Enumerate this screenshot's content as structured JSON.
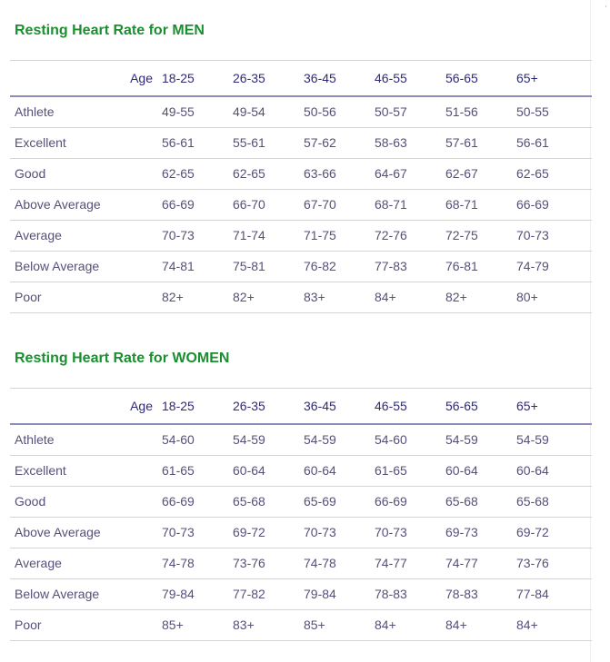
{
  "men": {
    "title": "Resting Heart Rate for MEN",
    "age_label": "Age",
    "columns": [
      "18-25",
      "26-35",
      "36-45",
      "46-55",
      "56-65",
      "65+"
    ],
    "rows": [
      {
        "label": "Athlete",
        "values": [
          "49-55",
          "49-54",
          "50-56",
          "50-57",
          "51-56",
          "50-55"
        ]
      },
      {
        "label": "Excellent",
        "values": [
          "56-61",
          "55-61",
          "57-62",
          "58-63",
          "57-61",
          "56-61"
        ]
      },
      {
        "label": "Good",
        "values": [
          "62-65",
          "62-65",
          "63-66",
          "64-67",
          "62-67",
          "62-65"
        ]
      },
      {
        "label": "Above Average",
        "values": [
          "66-69",
          "66-70",
          "67-70",
          "68-71",
          "68-71",
          "66-69"
        ]
      },
      {
        "label": "Average",
        "values": [
          "70-73",
          "71-74",
          "71-75",
          "72-76",
          "72-75",
          "70-73"
        ]
      },
      {
        "label": "Below Average",
        "values": [
          "74-81",
          "75-81",
          "76-82",
          "77-83",
          "76-81",
          "74-79"
        ]
      },
      {
        "label": "Poor",
        "values": [
          "82+",
          "82+",
          "83+",
          "84+",
          "82+",
          "80+"
        ]
      }
    ]
  },
  "women": {
    "title": "Resting Heart Rate for WOMEN",
    "age_label": "Age",
    "columns": [
      "18-25",
      "26-35",
      "36-45",
      "46-55",
      "56-65",
      "65+"
    ],
    "rows": [
      {
        "label": "Athlete",
        "values": [
          "54-60",
          "54-59",
          "54-59",
          "54-60",
          "54-59",
          "54-59"
        ]
      },
      {
        "label": "Excellent",
        "values": [
          "61-65",
          "60-64",
          "60-64",
          "61-65",
          "60-64",
          "60-64"
        ]
      },
      {
        "label": "Good",
        "values": [
          "66-69",
          "65-68",
          "65-69",
          "66-69",
          "65-68",
          "65-68"
        ]
      },
      {
        "label": "Above Average",
        "values": [
          "70-73",
          "69-72",
          "70-73",
          "70-73",
          "69-73",
          "69-72"
        ]
      },
      {
        "label": "Average",
        "values": [
          "74-78",
          "73-76",
          "74-78",
          "74-77",
          "74-77",
          "73-76"
        ]
      },
      {
        "label": "Below Average",
        "values": [
          "79-84",
          "77-82",
          "79-84",
          "78-83",
          "78-83",
          "77-84"
        ]
      },
      {
        "label": "Poor",
        "values": [
          "85+",
          "83+",
          "85+",
          "84+",
          "84+",
          "84+"
        ]
      }
    ]
  },
  "colors": {
    "title_green": "#1a8f2f",
    "header_text": "#2e2a7a",
    "cell_text": "#55507a",
    "header_rule": "#8c8cb8",
    "row_rule": "#d5d5d5"
  }
}
